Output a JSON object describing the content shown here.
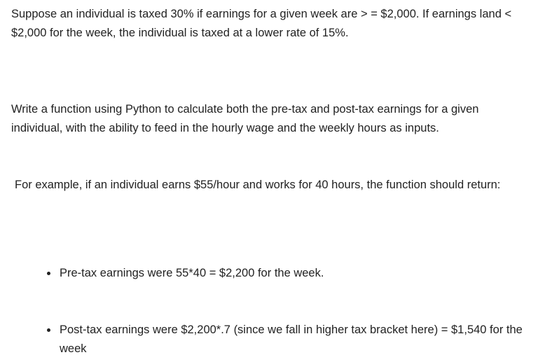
{
  "document": {
    "paragraphs": [
      "Suppose an individual is taxed 30% if earnings for a given week are > = $2,000. If earnings land < $2,000 for the week, the individual is taxed at a lower rate of 15%.",
      "Write a function using Python to calculate both the pre-tax and post-tax earnings for a given individual, with the ability to feed in the hourly wage and the weekly hours as inputs.",
      "For example, if an individual earns $55/hour and works for 40 hours, the function should return:"
    ],
    "bullets": [
      "Pre-tax earnings were 55*40 = $2,200 for the week.",
      "Post-tax earnings were $2,200*.7 (since we fall in higher tax bracket here) = $1,540 for the week"
    ]
  }
}
